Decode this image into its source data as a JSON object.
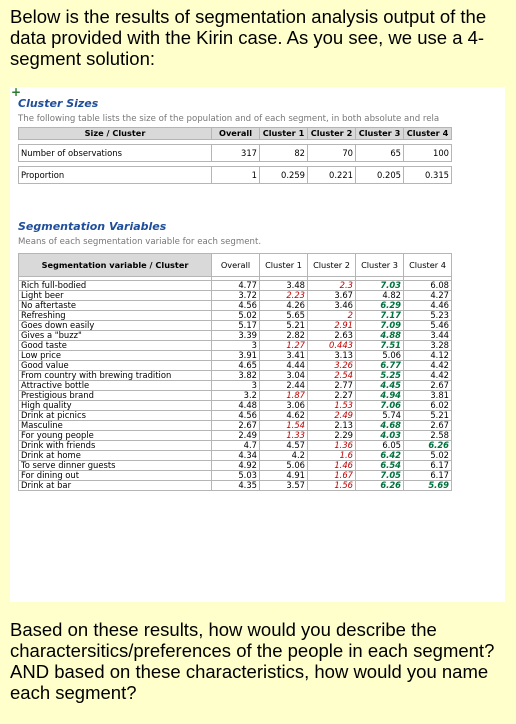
{
  "intro_text": "Below is  the results of segmentation analysis output of the data provided with the Kirin case. As you see, we use a 4-segment solution:",
  "outro_text": "Based on these results, how would you describe the charactersitics/preferences of the people in each segment?  AND based on these characteristics, how would you name each segment?",
  "cluster_sizes": {
    "title": "Cluster Sizes",
    "description": "The following table lists the size of the population and of each segment, in both absolute and rela",
    "headers": [
      "Size / Cluster",
      "Overall",
      "Cluster 1",
      "Cluster 2",
      "Cluster 3",
      "Cluster 4"
    ],
    "rows": [
      {
        "label": "Number of observations",
        "values": [
          "317",
          "82",
          "70",
          "65",
          "100"
        ]
      },
      {
        "label": "Proportion",
        "values": [
          "1",
          "0.259",
          "0.221",
          "0.205",
          "0.315"
        ]
      }
    ]
  },
  "segmentation_variables": {
    "title": "Segmentation Variables",
    "description": "Means of each segmentation variable for each segment.",
    "headers": [
      "Segmentation variable / Cluster",
      "Overall",
      "Cluster 1",
      "Cluster 2",
      "Cluster 3",
      "Cluster 4"
    ],
    "rows": [
      {
        "label": "Rich full-bodied",
        "values": [
          "4.77",
          "3.48",
          "2.3",
          "7.03",
          "6.08"
        ],
        "styles": [
          "",
          "",
          "lo",
          "hi",
          ""
        ]
      },
      {
        "label": "Light beer",
        "values": [
          "3.72",
          "2.23",
          "3.67",
          "4.82",
          "4.27"
        ],
        "styles": [
          "",
          "lo",
          "",
          "",
          ""
        ]
      },
      {
        "label": "No aftertaste",
        "values": [
          "4.56",
          "4.26",
          "3.46",
          "6.29",
          "4.46"
        ],
        "styles": [
          "",
          "",
          "",
          "hi",
          ""
        ]
      },
      {
        "label": "Refreshing",
        "values": [
          "5.02",
          "5.65",
          "2",
          "7.17",
          "5.23"
        ],
        "styles": [
          "",
          "",
          "lo",
          "hi",
          ""
        ]
      },
      {
        "label": "Goes down easily",
        "values": [
          "5.17",
          "5.21",
          "2.91",
          "7.09",
          "5.46"
        ],
        "styles": [
          "",
          "",
          "lo",
          "hi",
          ""
        ]
      },
      {
        "label": "Gives a \"buzz\"",
        "values": [
          "3.39",
          "2.82",
          "2.63",
          "4.88",
          "3.44"
        ],
        "styles": [
          "",
          "",
          "",
          "hi",
          ""
        ]
      },
      {
        "label": "Good taste",
        "values": [
          "3",
          "1.27",
          "0.443",
          "7.51",
          "3.28"
        ],
        "styles": [
          "",
          "lo",
          "lo",
          "hi",
          ""
        ]
      },
      {
        "label": "Low price",
        "values": [
          "3.91",
          "3.41",
          "3.13",
          "5.06",
          "4.12"
        ],
        "styles": [
          "",
          "",
          "",
          "",
          ""
        ]
      },
      {
        "label": "Good value",
        "values": [
          "4.65",
          "4.44",
          "3.26",
          "6.77",
          "4.42"
        ],
        "styles": [
          "",
          "",
          "lo",
          "hi",
          ""
        ]
      },
      {
        "label": "From country with brewing tradition",
        "values": [
          "3.82",
          "3.04",
          "2.54",
          "5.25",
          "4.42"
        ],
        "styles": [
          "",
          "",
          "lo",
          "hi",
          ""
        ]
      },
      {
        "label": "Attractive bottle",
        "values": [
          "3",
          "2.44",
          "2.77",
          "4.45",
          "2.67"
        ],
        "styles": [
          "",
          "",
          "",
          "hi",
          ""
        ]
      },
      {
        "label": "Prestigious brand",
        "values": [
          "3.2",
          "1.87",
          "2.27",
          "4.94",
          "3.81"
        ],
        "styles": [
          "",
          "lo",
          "",
          "hi",
          ""
        ]
      },
      {
        "label": "High quality",
        "values": [
          "4.48",
          "3.06",
          "1.53",
          "7.06",
          "6.02"
        ],
        "styles": [
          "",
          "",
          "lo",
          "hi",
          ""
        ]
      },
      {
        "label": "Drink at picnics",
        "values": [
          "4.56",
          "4.62",
          "2.49",
          "5.74",
          "5.21"
        ],
        "styles": [
          "",
          "",
          "lo",
          "",
          ""
        ]
      },
      {
        "label": "Masculine",
        "values": [
          "2.67",
          "1.54",
          "2.13",
          "4.68",
          "2.67"
        ],
        "styles": [
          "",
          "lo",
          "",
          "hi",
          ""
        ]
      },
      {
        "label": "For young people",
        "values": [
          "2.49",
          "1.33",
          "2.29",
          "4.03",
          "2.58"
        ],
        "styles": [
          "",
          "lo",
          "",
          "hi",
          ""
        ]
      },
      {
        "label": "Drink with friends",
        "values": [
          "4.7",
          "4.57",
          "1.36",
          "6.05",
          "6.26"
        ],
        "styles": [
          "",
          "",
          "lo",
          "",
          "hi"
        ]
      },
      {
        "label": "Drink at home",
        "values": [
          "4.34",
          "4.2",
          "1.6",
          "6.42",
          "5.02"
        ],
        "styles": [
          "",
          "",
          "lo",
          "hi",
          ""
        ]
      },
      {
        "label": "To serve dinner guests",
        "values": [
          "4.92",
          "5.06",
          "1.46",
          "6.54",
          "6.17"
        ],
        "styles": [
          "",
          "",
          "lo",
          "hi",
          ""
        ]
      },
      {
        "label": "For dining out",
        "values": [
          "5.03",
          "4.91",
          "1.67",
          "7.05",
          "6.17"
        ],
        "styles": [
          "",
          "",
          "lo",
          "hi",
          ""
        ]
      },
      {
        "label": "Drink at bar",
        "values": [
          "4.35",
          "3.57",
          "1.56",
          "6.26",
          "5.69"
        ],
        "styles": [
          "",
          "",
          "lo",
          "hi",
          "hi"
        ]
      }
    ]
  },
  "colors": {
    "background": "#FFFFCC",
    "section_title": "#1F4E9B",
    "low_value": "#C00000",
    "high_value": "#00703C",
    "header_fill": "#D9D9D9"
  }
}
